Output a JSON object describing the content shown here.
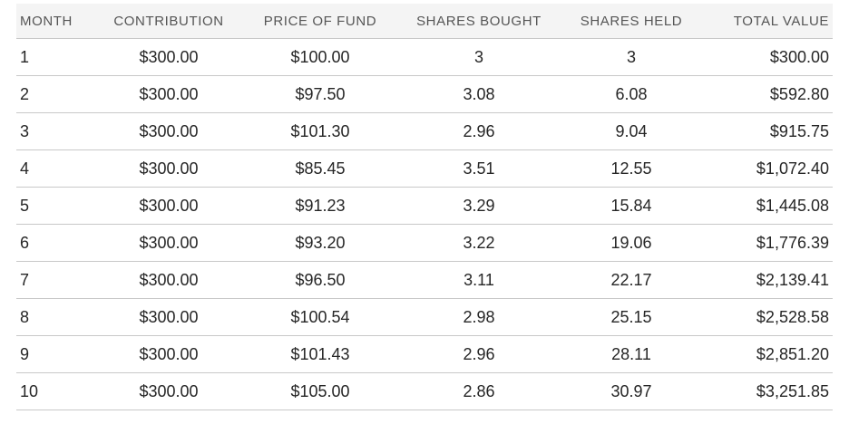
{
  "table": {
    "columns": [
      {
        "key": "month",
        "label": "MONTH"
      },
      {
        "key": "contribution",
        "label": "CONTRIBUTION"
      },
      {
        "key": "price",
        "label": "PRICE OF FUND"
      },
      {
        "key": "bought",
        "label": "SHARES BOUGHT"
      },
      {
        "key": "held",
        "label": "SHARES HELD"
      },
      {
        "key": "total",
        "label": "TOTAL VALUE"
      }
    ],
    "rows": [
      {
        "month": "1",
        "contribution": "$300.00",
        "price": "$100.00",
        "bought": "3",
        "held": "3",
        "total": "$300.00"
      },
      {
        "month": "2",
        "contribution": "$300.00",
        "price": "$97.50",
        "bought": "3.08",
        "held": "6.08",
        "total": "$592.80"
      },
      {
        "month": "3",
        "contribution": "$300.00",
        "price": "$101.30",
        "bought": "2.96",
        "held": "9.04",
        "total": "$915.75"
      },
      {
        "month": "4",
        "contribution": "$300.00",
        "price": "$85.45",
        "bought": "3.51",
        "held": "12.55",
        "total": "$1,072.40"
      },
      {
        "month": "5",
        "contribution": "$300.00",
        "price": "$91.23",
        "bought": "3.29",
        "held": "15.84",
        "total": "$1,445.08"
      },
      {
        "month": "6",
        "contribution": "$300.00",
        "price": "$93.20",
        "bought": "3.22",
        "held": "19.06",
        "total": "$1,776.39"
      },
      {
        "month": "7",
        "contribution": "$300.00",
        "price": "$96.50",
        "bought": "3.11",
        "held": "22.17",
        "total": "$2,139.41"
      },
      {
        "month": "8",
        "contribution": "$300.00",
        "price": "$100.54",
        "bought": "2.98",
        "held": "25.15",
        "total": "$2,528.58"
      },
      {
        "month": "9",
        "contribution": "$300.00",
        "price": "$101.43",
        "bought": "2.96",
        "held": "28.11",
        "total": "$2,851.20"
      },
      {
        "month": "10",
        "contribution": "$300.00",
        "price": "$105.00",
        "bought": "2.86",
        "held": "30.97",
        "total": "$3,251.85"
      }
    ]
  }
}
